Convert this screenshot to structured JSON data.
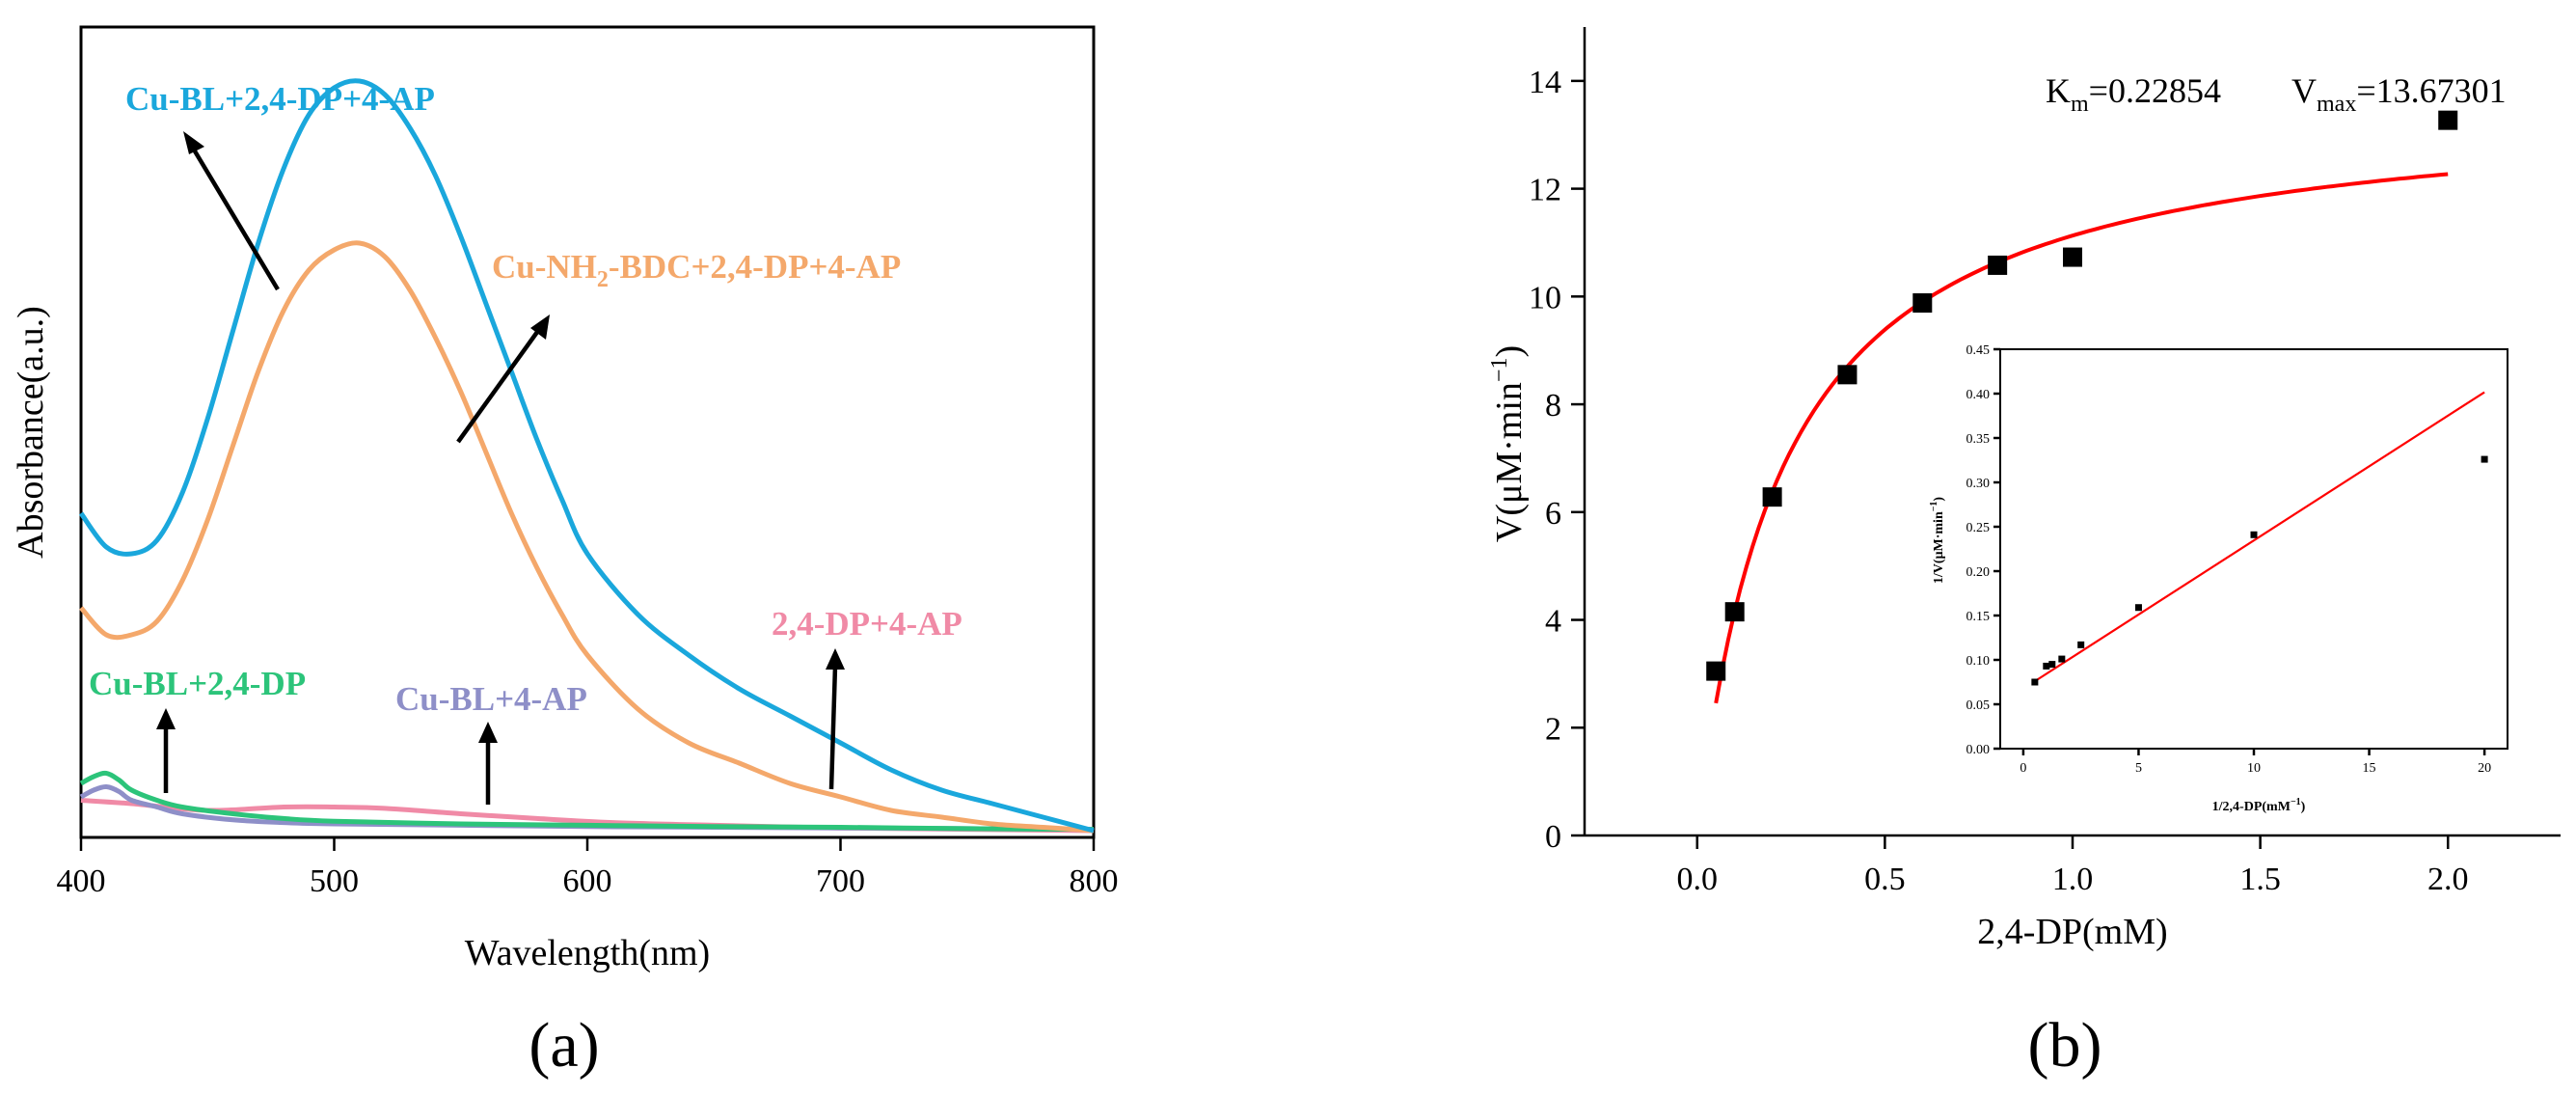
{
  "chart_data": [
    {
      "panel": "a",
      "type": "line",
      "panel_label": "(a)",
      "xlabel": "Wavelength(nm)",
      "ylabel": "Absorbance(a.u.)",
      "xlim": [
        400,
        800
      ],
      "ylim": [
        0,
        1.2
      ],
      "xticks": [
        400,
        500,
        600,
        700,
        800
      ],
      "yticks_visible": false,
      "series": [
        {
          "name": "Cu-BL+2,4-DP+4-AP",
          "color": "#1aa7dc",
          "x": [
            400,
            410,
            420,
            430,
            440,
            450,
            460,
            470,
            480,
            490,
            500,
            510,
            520,
            530,
            540,
            550,
            560,
            570,
            580,
            590,
            600,
            620,
            640,
            660,
            680,
            700,
            720,
            740,
            760,
            780,
            800
          ],
          "y": [
            0.48,
            0.43,
            0.42,
            0.44,
            0.51,
            0.62,
            0.75,
            0.88,
            0.99,
            1.07,
            1.11,
            1.12,
            1.1,
            1.05,
            0.98,
            0.89,
            0.79,
            0.69,
            0.59,
            0.5,
            0.42,
            0.33,
            0.27,
            0.22,
            0.18,
            0.14,
            0.1,
            0.07,
            0.05,
            0.03,
            0.01
          ]
        },
        {
          "name": "Cu-NH2-BDC+2,4-DP+4-AP",
          "color": "#f4a86b",
          "x": [
            400,
            410,
            420,
            430,
            440,
            450,
            460,
            470,
            480,
            490,
            500,
            510,
            520,
            530,
            540,
            550,
            560,
            570,
            580,
            590,
            600,
            620,
            640,
            660,
            680,
            700,
            720,
            740,
            760,
            780,
            800
          ],
          "y": [
            0.34,
            0.3,
            0.3,
            0.32,
            0.38,
            0.47,
            0.58,
            0.69,
            0.78,
            0.84,
            0.87,
            0.88,
            0.86,
            0.81,
            0.74,
            0.66,
            0.57,
            0.48,
            0.4,
            0.33,
            0.27,
            0.19,
            0.14,
            0.11,
            0.08,
            0.06,
            0.04,
            0.03,
            0.02,
            0.015,
            0.01
          ]
        },
        {
          "name": "2,4-DP+4-AP",
          "color": "#f08aa6",
          "x": [
            400,
            420,
            450,
            480,
            500,
            520,
            550,
            580,
            610,
            650,
            700,
            750,
            800
          ],
          "y": [
            0.055,
            0.05,
            0.04,
            0.045,
            0.045,
            0.043,
            0.035,
            0.028,
            0.022,
            0.018,
            0.014,
            0.012,
            0.01
          ]
        },
        {
          "name": "Cu-BL+2,4-DP",
          "color": "#2cc47a",
          "x": [
            400,
            405,
            410,
            415,
            420,
            430,
            440,
            460,
            480,
            500,
            550,
            600,
            650,
            700,
            750,
            800
          ],
          "y": [
            0.08,
            0.09,
            0.095,
            0.085,
            0.07,
            0.055,
            0.045,
            0.035,
            0.028,
            0.024,
            0.02,
            0.018,
            0.016,
            0.015,
            0.013,
            0.012
          ]
        },
        {
          "name": "Cu-BL+4-AP",
          "color": "#8e8fc8",
          "x": [
            400,
            405,
            410,
            415,
            420,
            430,
            440,
            460,
            480,
            500,
            550,
            600,
            650,
            700,
            750,
            800
          ],
          "y": [
            0.06,
            0.07,
            0.075,
            0.068,
            0.055,
            0.045,
            0.035,
            0.026,
            0.022,
            0.02,
            0.018,
            0.016,
            0.015,
            0.014,
            0.013,
            0.012
          ]
        }
      ]
    },
    {
      "panel": "b",
      "type": "scatter",
      "panel_label": "(b)",
      "xlabel": "2,4-DP(mM)",
      "ylabel_text": "V(μM·min",
      "ylabel_sup": "−1",
      "xlim": [
        -0.3,
        2.3
      ],
      "ylim": [
        0,
        15
      ],
      "xticks": [
        0.0,
        0.5,
        1.0,
        1.5,
        2.0
      ],
      "yticks": [
        0,
        2,
        4,
        6,
        8,
        10,
        12,
        14
      ],
      "annotation": {
        "km_label": "K",
        "km_sub": "m",
        "km_value": "=0.22854",
        "vmax_label": "V",
        "vmax_sub": "max",
        "vmax_value": "=13.67301"
      },
      "fit": {
        "model": "Michaelis-Menten",
        "km": 0.22854,
        "vmax": 13.67301,
        "x_range": [
          0.05,
          2.0
        ],
        "color": "#ff0000"
      },
      "points": {
        "x": [
          0.05,
          0.1,
          0.2,
          0.4,
          0.6,
          0.8,
          1.0,
          2.0
        ],
        "y": [
          3.05,
          4.15,
          6.28,
          8.55,
          9.88,
          10.58,
          10.73,
          13.27
        ]
      },
      "inset": {
        "type": "scatter",
        "xlabel": "1/2,4-DP(mM",
        "xlabel_sup": "−1",
        "ylabel": "1/V(μM·min",
        "ylabel_sup": "−1",
        "xlim": [
          -1,
          21
        ],
        "ylim": [
          0,
          0.45
        ],
        "xticks": [
          0,
          5,
          10,
          15,
          20
        ],
        "yticks": [
          0.0,
          0.05,
          0.1,
          0.15,
          0.2,
          0.25,
          0.3,
          0.35,
          0.4,
          0.45
        ],
        "points": {
          "x": [
            0.5,
            1.0,
            1.25,
            1.67,
            2.5,
            5.0,
            10.0,
            20.0
          ],
          "y": [
            0.075,
            0.093,
            0.095,
            0.101,
            0.117,
            0.159,
            0.241,
            0.326
          ]
        },
        "fit": {
          "slope": 0.0167,
          "intercept": 0.0676,
          "x_range": [
            0.5,
            20.0
          ],
          "color": "#ff0000"
        }
      }
    }
  ]
}
